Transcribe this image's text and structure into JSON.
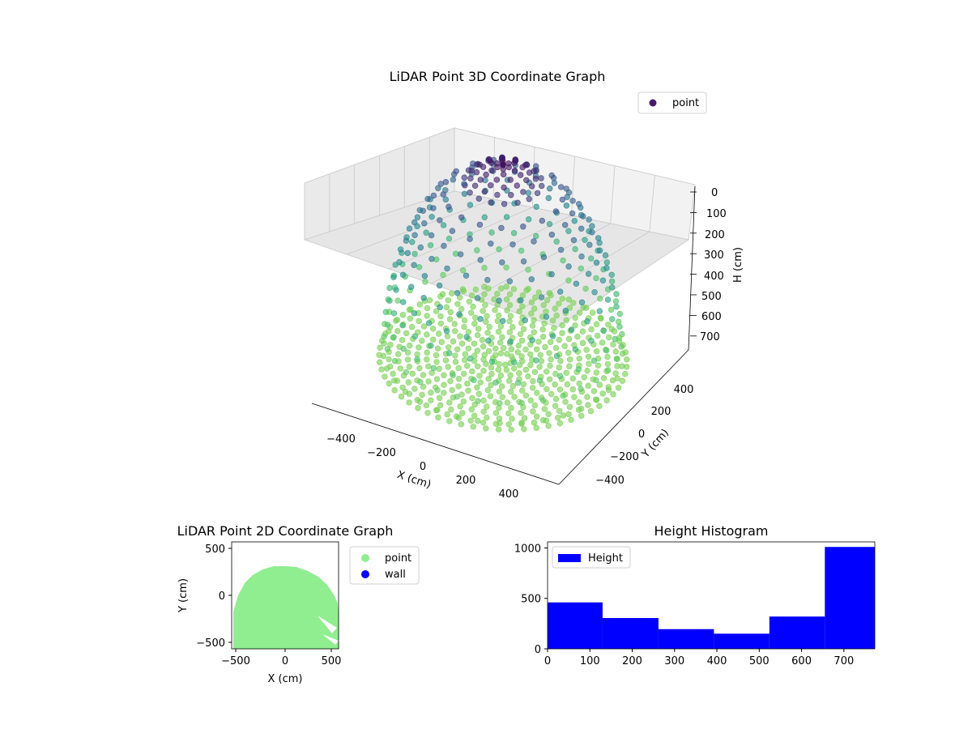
{
  "chart_data": [
    {
      "type": "scatter3d",
      "title": "LiDAR Point 3D Coordinate Graph",
      "xlabel": "X (cm)",
      "ylabel": "Y (cm)",
      "zlabel": "H (cm)",
      "xlim": [
        -550,
        550
      ],
      "ylim": [
        -550,
        550
      ],
      "zlim": [
        0,
        770
      ],
      "x_ticks": [
        "−400",
        "−200",
        "0",
        "200",
        "400"
      ],
      "y_ticks": [
        "−400",
        "−200",
        "0",
        "200",
        "400"
      ],
      "z_ticks": [
        "0",
        "100",
        "200",
        "300",
        "400",
        "500",
        "600",
        "700"
      ],
      "legend": [
        "point"
      ],
      "colormap": "viridis",
      "description": "Points sampled on a dome-shaped room surface; color follows height"
    },
    {
      "type": "scatter",
      "title": "LiDAR Point 2D Coordinate Graph",
      "xlabel": "X (cm)",
      "ylabel": "Y (cm)",
      "xlim": [
        -550,
        550
      ],
      "ylim": [
        -550,
        550
      ],
      "x_ticks": [
        "−500",
        "0",
        "500"
      ],
      "y_ticks": [
        "−500",
        "0",
        "500"
      ],
      "series": [
        {
          "name": "point",
          "color": "#90ee90"
        },
        {
          "name": "wall",
          "color": "#0000ff"
        }
      ]
    },
    {
      "type": "bar",
      "title": "Height Histogram",
      "bins": [
        [
          0,
          130
        ],
        [
          130,
          262
        ],
        [
          262,
          393
        ],
        [
          393,
          524
        ],
        [
          524,
          655
        ],
        [
          655,
          773
        ]
      ],
      "values": [
        460,
        305,
        195,
        150,
        320,
        1010
      ],
      "xlim": [
        0,
        773
      ],
      "ylim": [
        0,
        1060
      ],
      "x_ticks": [
        0,
        100,
        200,
        300,
        400,
        500,
        600,
        700
      ],
      "y_ticks": [
        0,
        500,
        1000
      ],
      "legend": [
        "Height"
      ],
      "color": "#0000ff"
    }
  ]
}
